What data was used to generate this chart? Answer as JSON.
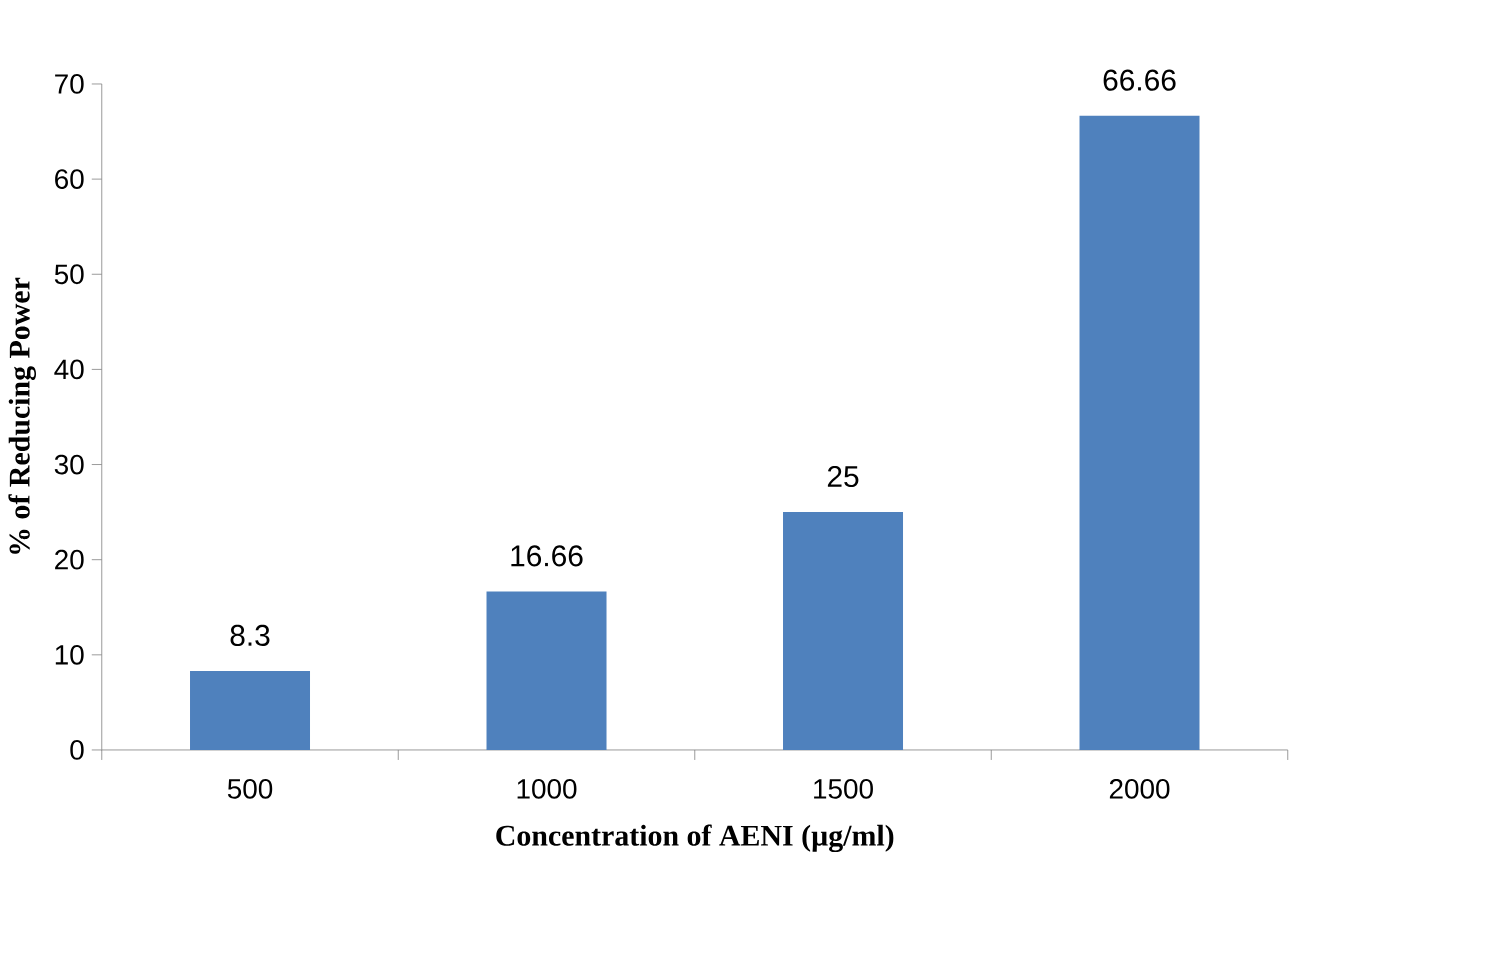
{
  "chart_data": {
    "type": "bar",
    "xlabel": "Concentration of AENI (µg/ml)",
    "ylabel": "% of Reducing Power",
    "categories": [
      "500",
      "1000",
      "1500",
      "2000"
    ],
    "values": [
      8.3,
      16.66,
      25,
      66.66
    ],
    "value_labels": [
      "8.3",
      "16.66",
      "25",
      "66.66"
    ],
    "color": "#4f81bd",
    "ylim": [
      0,
      70
    ],
    "yticks": [
      0,
      10,
      20,
      30,
      40,
      50,
      60,
      70
    ],
    "grid": false
  }
}
